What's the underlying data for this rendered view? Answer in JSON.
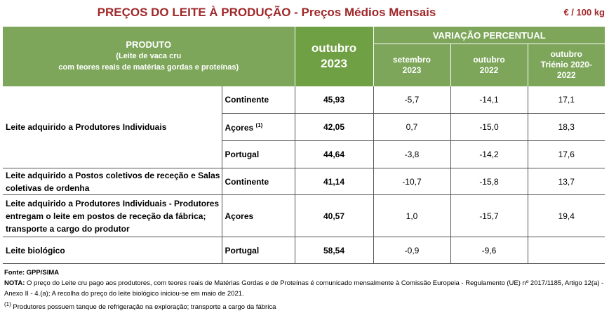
{
  "title": "PREÇOS DO LEITE À PRODUÇÃO - Preços Médios Mensais",
  "unit": "€ / 100 kg",
  "header": {
    "product_title": "PRODUTO",
    "product_sub1": "(Leite de vaca cru",
    "product_sub2": "com teores reais de matérias gordas e proteínas)",
    "month_line1": "outubro",
    "month_line2": "2023",
    "variation_title": "VARIAÇÃO PERCENTUAL",
    "col1_line1": "setembro",
    "col1_line2": "2023",
    "col2_line1": "outubro",
    "col2_line2": "2022",
    "col3_line1": "outubro",
    "col3_line2": "Triénio 2020-",
    "col3_line3": "2022"
  },
  "rows": [
    {
      "desc": "Leite adquirido a Produtores Individuais",
      "region": "Continente",
      "price": "45,93",
      "v1": "-5,7",
      "v2": "-14,1",
      "v3": "17,1"
    },
    {
      "region": "Açores",
      "region_sup": "(1)",
      "price": "42,05",
      "v1": "0,7",
      "v2": "-15,0",
      "v3": "18,3"
    },
    {
      "region": "Portugal",
      "price": "44,64",
      "v1": "-3,8",
      "v2": "-14,2",
      "v3": "17,6"
    },
    {
      "desc": "Leite adquirido a Postos coletivos de receção e Salas coletivas de ordenha",
      "region": "Continente",
      "price": "41,14",
      "v1": "-10,7",
      "v2": "-15,8",
      "v3": "13,7"
    },
    {
      "desc": "Leite adquirido a Produtores Individuais - Produtores entregam o leite em postos de receção da fábrica; transporte a cargo do produtor",
      "region": "Açores",
      "price": "40,57",
      "v1": "1,0",
      "v2": "-15,7",
      "v3": "19,4"
    },
    {
      "desc": "Leite biológico",
      "region": "Portugal",
      "price": "58,54",
      "v1": "-0,9",
      "v2": "-9,6",
      "v3": ""
    }
  ],
  "notes": {
    "source": "Fonte: GPP/SIMA",
    "nota_label": "NOTA:",
    "nota_text": " O preço do Leite cru pago aos produtores, com teores reais de Matérias Gordas e de Proteínas é comunicado mensalmente à Comissão Europeia - Regulamento (UE) nº 2017/1185, Artigo 12(a) - Anexo II - 4.(a); A recolha do preço do leite biológico iniciou-se em maio de 2021.",
    "footnote_mark": "(1)",
    "footnote_text": " Produtores possuem tanque de refrigeração na exploração; transporte a cargo da fábrica"
  }
}
